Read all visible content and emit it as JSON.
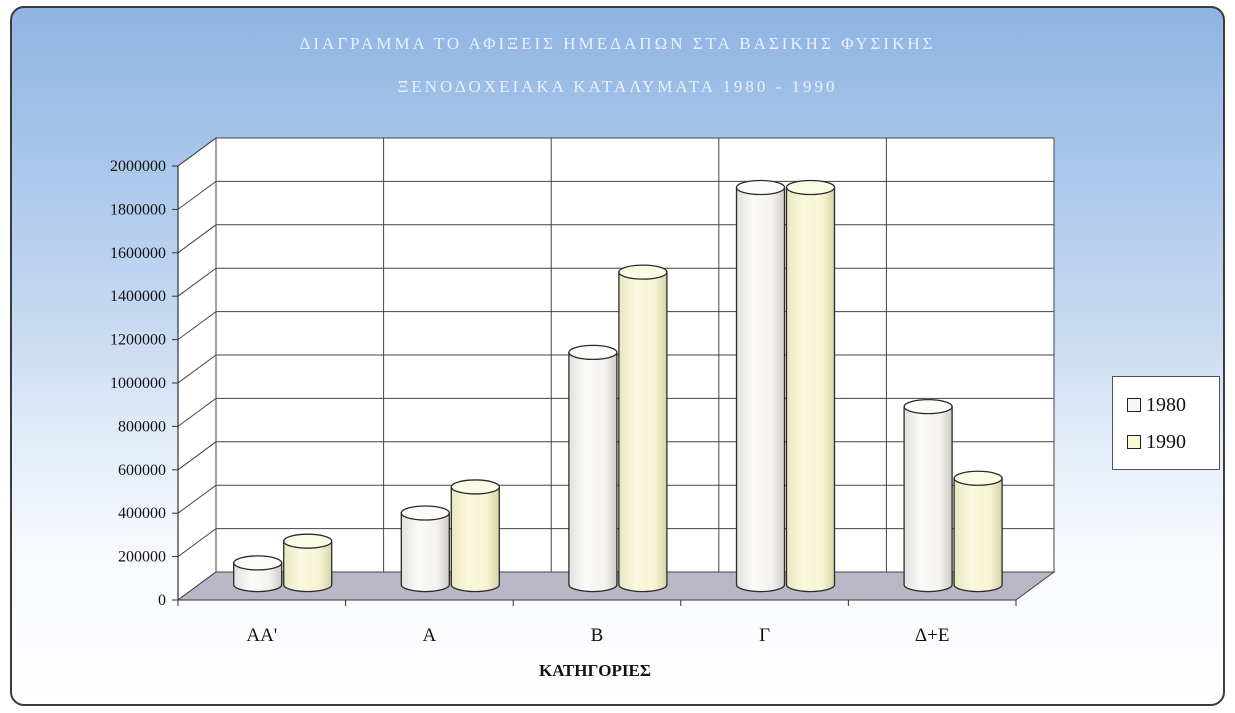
{
  "chart_data": {
    "type": "bar",
    "title": "ΔΙΑΓΡΑΜΜΑ ΤΟ ΑΦΙΞΕΙΣ ΗΜΕΔΑΠΩΝ ΣΤΑ ΒΑΣΙΚΗΣ ΦΥΣΙΚΗΣ",
    "subtitle": "ΞΕΝΟΔΟΧΕΙΑΚΑ ΚΑΤΑΛΥΜΑΤΑ 1980 - 1990",
    "xlabel": "ΚΑΤΗΓΟΡΙΕΣ",
    "ylabel": "",
    "categories": [
      "AA'",
      "A",
      "B",
      "Γ",
      "Δ+Ε"
    ],
    "series": [
      {
        "name": "1980",
        "values": [
          100000,
          330000,
          1070000,
          1830000,
          820000
        ]
      },
      {
        "name": "1990",
        "values": [
          200000,
          450000,
          1440000,
          1830000,
          490000
        ]
      }
    ],
    "ylim": [
      0,
      2000000
    ],
    "y_ticks": [
      0,
      200000,
      400000,
      600000,
      800000,
      1000000,
      1200000,
      1400000,
      1600000,
      1800000,
      2000000
    ],
    "y_tick_labels": [
      "0",
      "200000",
      "400000",
      "600000",
      "800000",
      "1000000",
      "1200000",
      "1400000",
      "1600000",
      "1800000",
      "2000000"
    ],
    "grid": true,
    "legend_position": "right",
    "colors": {
      "1980": "#f8f6f2",
      "1990": "#f9f7d6"
    }
  }
}
